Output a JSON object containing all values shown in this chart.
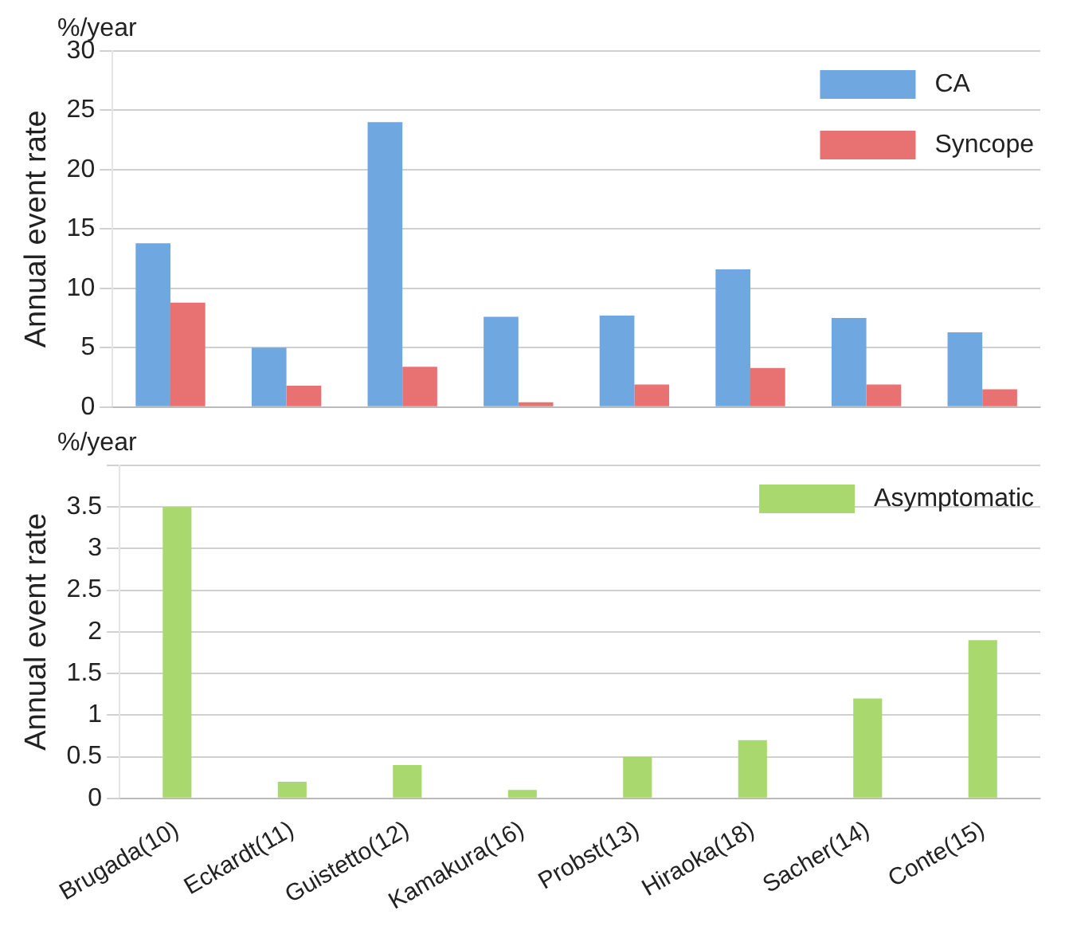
{
  "chart_data": [
    {
      "type": "bar",
      "ylabel": "Annual event rate",
      "annotations": [
        "%/year"
      ],
      "categories": [
        null,
        null,
        null,
        null,
        null,
        null,
        null,
        null
      ],
      "series": [
        {
          "name": "CA",
          "color": "#6fa8e0",
          "values": [
            13.8,
            5,
            24,
            7.6,
            7.7,
            11.6,
            7.5,
            6.3
          ]
        },
        {
          "name": "Syncope",
          "color": "#e87272",
          "values": [
            8.8,
            1.8,
            3.4,
            0.4,
            1.9,
            3.3,
            1.9,
            1.5
          ]
        }
      ],
      "ylim": [
        0,
        30
      ],
      "yticks": [
        0,
        5,
        10,
        15,
        20,
        25,
        30
      ],
      "grid": "y",
      "legend": "top right",
      "tick_labels": "y"
    },
    {
      "type": "bar",
      "ylabel": "Annual event rate",
      "annotations": [
        "%/year"
      ],
      "categories": [
        "Brugada(10)",
        "Eckardt(11)",
        "Guistetto(12)",
        "Kamakura(16)",
        "Probst(13)",
        "Hiraoka(18)",
        "Sacher(14)",
        "Conte(15)"
      ],
      "series": [
        {
          "name": "Asymptomatic",
          "color": "#a8d86e",
          "values": [
            3.5,
            0.2,
            0.4,
            0.1,
            0.5,
            0.7,
            1.2,
            1.9
          ]
        }
      ],
      "ylim": [
        0,
        4
      ],
      "yticks": [
        0,
        0.5,
        1,
        1.5,
        2,
        2.5,
        3,
        3.5,
        {
          "value": 4,
          "label": null
        }
      ],
      "grid": "y",
      "legend": "top right"
    }
  ]
}
